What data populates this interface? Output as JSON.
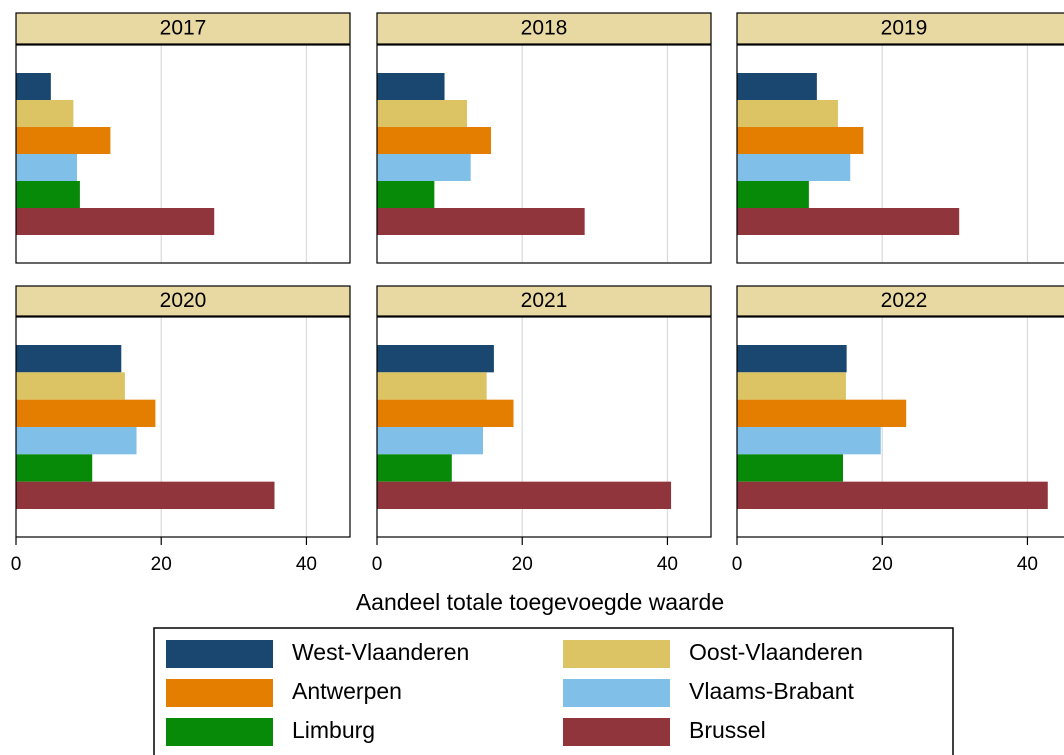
{
  "chart_data": {
    "type": "bar",
    "orientation": "horizontal",
    "xlabel": "Aandeel totale toegevoegde waarde",
    "panels": [
      "2017",
      "2018",
      "2019",
      "2020",
      "2021",
      "2022"
    ],
    "xlim": [
      0,
      46
    ],
    "xticks": [
      0,
      20,
      40
    ],
    "grid": true,
    "series": [
      {
        "name": "West-Vlaanderen",
        "color": "#1a476f",
        "values": [
          4.8,
          9.3,
          11,
          14.5,
          16.1,
          15.1
        ]
      },
      {
        "name": "Oost-Vlaanderen",
        "color": "#dcc364",
        "values": [
          7.9,
          12.4,
          13.9,
          15,
          15.1,
          15
        ]
      },
      {
        "name": "Antwerpen",
        "color": "#e37e00",
        "values": [
          13,
          15.7,
          17.4,
          19.2,
          18.8,
          23.3
        ]
      },
      {
        "name": "Vlaams-Brabant",
        "color": "#80bfe8",
        "values": [
          8.4,
          12.9,
          15.6,
          16.6,
          14.6,
          19.8
        ]
      },
      {
        "name": "Limburg",
        "color": "#078a07",
        "values": [
          8.8,
          7.9,
          9.9,
          10.5,
          10.3,
          14.6
        ]
      },
      {
        "name": "Brussel",
        "color": "#90353b",
        "values": [
          27.3,
          28.6,
          30.6,
          35.6,
          40.5,
          42.8
        ]
      }
    ]
  }
}
